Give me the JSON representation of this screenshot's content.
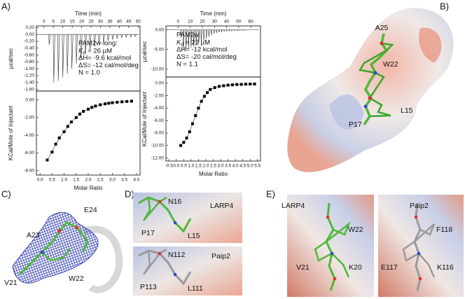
{
  "chart_data": [
    {
      "type": "thermogram",
      "x_label": "Time (min)",
      "y_label": "µcal/sec",
      "xlim": [
        -4,
        51
      ],
      "xticks": [
        0,
        5,
        10,
        15,
        20,
        25,
        30,
        35,
        40,
        45,
        50
      ],
      "ylim": [
        -1.65,
        0.25
      ],
      "yticks": [
        {
          "value": 0.2,
          "label": "0.20"
        },
        {
          "value": 0,
          "label": "0.00"
        },
        {
          "value": -0.2,
          "label": "-0.20"
        },
        {
          "value": -0.4,
          "label": "-0.40"
        },
        {
          "value": -0.6,
          "label": "-0.60"
        },
        {
          "value": -0.8,
          "label": "-0.80"
        },
        {
          "value": -1.0,
          "label": "-1.00"
        },
        {
          "value": -1.2,
          "label": "-1.20"
        },
        {
          "value": -1.4,
          "label": "-1.40"
        },
        {
          "value": -1.6,
          "label": "-1.60"
        }
      ],
      "x": [
        2.5,
        4.9,
        7.3,
        9.7,
        12.1,
        14.5,
        16.9,
        19.3,
        21.7,
        24.1,
        26.5,
        28.9,
        31.3,
        33.7,
        36.1,
        38.5,
        40.9,
        43.3,
        45.7,
        48.1
      ],
      "values": [
        -0.3,
        -1.4,
        -1.35,
        -1.25,
        -1.15,
        -1.0,
        -0.85,
        -0.7,
        -0.55,
        -0.45,
        -0.35,
        -0.28,
        -0.22,
        -0.18,
        -0.15,
        -0.12,
        -0.1,
        -0.08,
        -0.07,
        -0.06
      ],
      "annotations": [
        "PAM2w-long:",
        {
          "symbol": "K",
          "subscript": "d",
          "text": "= 26  µM"
        },
        "ΔH= -9.6 kcal/mol",
        "ΔS= -12 cal/mol/deg",
        "N = 1.0"
      ]
    },
    {
      "type": "isotherm",
      "x_label": "Molar Ratio",
      "y_label": "KCal/Mole of Injectant",
      "xlim": [
        -0.15,
        4.15
      ],
      "xticks": [
        {
          "value": 0,
          "label": "0.0"
        },
        0.5,
        {
          "value": 1,
          "label": "1.0"
        },
        1.5,
        {
          "value": 2,
          "label": "2.0"
        },
        2.5,
        {
          "value": 3,
          "label": "3.0"
        },
        3.5,
        {
          "value": 4,
          "label": "4.0"
        }
      ],
      "ylim": [
        -8.5,
        1.0
      ],
      "yticks": [
        {
          "value": 0,
          "label": "0.00"
        },
        {
          "value": -2,
          "label": "-2.00"
        },
        {
          "value": -4,
          "label": "-4.00"
        },
        {
          "value": -6,
          "label": "-6.00"
        },
        {
          "value": -8,
          "label": "-8.00"
        }
      ],
      "x": [
        0.3,
        0.5,
        0.65,
        0.8,
        1.0,
        1.15,
        1.3,
        1.5,
        1.65,
        1.8,
        2.0,
        2.15,
        2.3,
        2.5,
        2.7,
        2.85,
        3.0,
        3.2,
        3.4,
        3.6,
        3.8
      ],
      "values": [
        -6.8,
        -5.9,
        -5.0,
        -4.3,
        -3.6,
        -3.0,
        -2.5,
        -2.0,
        -1.6,
        -1.3,
        -1.05,
        -0.85,
        -0.7,
        -0.55,
        -0.45,
        -0.38,
        -0.32,
        -0.27,
        -0.22,
        -0.18,
        -0.15
      ]
    },
    {
      "type": "thermogram",
      "x_label": "Time (min)",
      "y_label": "µcal/sec",
      "xlim": [
        -10,
        68
      ],
      "xticks": [
        0,
        10,
        20,
        30,
        40,
        50,
        60
      ],
      "ylim": [
        -12,
        1
      ],
      "yticks": [
        {
          "value": 0,
          "label": "0.00"
        },
        {
          "value": -5,
          "label": "-5.00"
        },
        {
          "value": -10,
          "label": "-10.00"
        }
      ],
      "x": [
        2,
        4.1,
        6.2,
        8.3,
        10.4,
        12.5,
        14.6,
        16.7,
        18.8,
        20.9,
        23,
        25.1,
        27.2,
        29.3,
        31.4,
        33.5,
        35.6,
        37.7,
        39.8,
        41.9,
        44,
        46.1,
        48.2,
        50.3,
        52.4,
        54.5
      ],
      "values": [
        -2,
        -5.3,
        -5.0,
        -4.8,
        -4.6,
        -4.3,
        -4.0,
        -3.6,
        -3.2,
        -2.8,
        -2.3,
        -1.8,
        -1.4,
        -1.0,
        -0.8,
        -0.6,
        -0.5,
        -0.4,
        -0.35,
        -0.3,
        -0.25,
        -0.22,
        -0.2,
        -0.18,
        -0.16,
        -0.15
      ],
      "annotations": [
        "PAM2w:",
        {
          "symbol": "K",
          "subscript": "d",
          "text": "= 22  µM"
        },
        "ΔH= -12 kcal/mol",
        "ΔS= -20 cal/mol/deg",
        "N = 1.1"
      ]
    },
    {
      "type": "isotherm",
      "x_label": "Molar Ratio",
      "y_label": "KCal/Mole of Injectant",
      "xlim": [
        -0.7,
        5.7
      ],
      "xticks": [
        -0.5,
        {
          "value": 0,
          "label": "0.0"
        },
        0.5,
        {
          "value": 1,
          "label": "1.0"
        },
        1.5,
        {
          "value": 2,
          "label": "2.0"
        },
        2.5,
        {
          "value": 3,
          "label": "3.0"
        },
        3.5,
        {
          "value": 4,
          "label": "4.0"
        },
        4.5,
        {
          "value": 5,
          "label": "5.0"
        },
        5.5
      ],
      "ylim": [
        -12.5,
        1.0
      ],
      "yticks": [
        {
          "value": 0,
          "label": "0.00"
        },
        {
          "value": -2,
          "label": "-2.00"
        },
        {
          "value": -4,
          "label": "-4.00"
        },
        {
          "value": -6,
          "label": "-6.00"
        },
        {
          "value": -8,
          "label": "-8.00"
        },
        {
          "value": -10,
          "label": "-10.00"
        },
        {
          "value": -12,
          "label": "-12.00"
        }
      ],
      "x": [
        0.3,
        0.5,
        0.7,
        0.9,
        1.1,
        1.3,
        1.5,
        1.7,
        1.9,
        2.1,
        2.3,
        2.6,
        2.9,
        3.2,
        3.5,
        3.8,
        4.1,
        4.4,
        4.7,
        5.0,
        5.3
      ],
      "values": [
        -10.0,
        -9.5,
        -8.8,
        -7.8,
        -6.5,
        -5.2,
        -4.0,
        -2.9,
        -2.1,
        -1.5,
        -1.0,
        -0.7,
        -0.5,
        -0.4,
        -0.3,
        -0.25,
        -0.2,
        -0.18,
        -0.15,
        -0.13,
        -0.12
      ]
    }
  ],
  "figure": {
    "panel_labels": [
      "A)",
      "B)",
      "C)",
      "D)",
      "E)"
    ],
    "panel_b": {
      "labels": [
        "A25",
        "W22",
        "L15",
        "P17"
      ]
    },
    "panel_c": {
      "labels": [
        "A23",
        "E24",
        "V21",
        "W22"
      ]
    },
    "panel_d": {
      "labels": [
        "N16",
        "LARP4",
        "P17",
        "L15",
        "N112",
        "Paip2",
        "P113",
        "L111"
      ]
    },
    "panel_e": {
      "labels": [
        "LARP4",
        "Paip2",
        "W22",
        "V21",
        "K20",
        "F118",
        "E117",
        "K116"
      ]
    }
  }
}
